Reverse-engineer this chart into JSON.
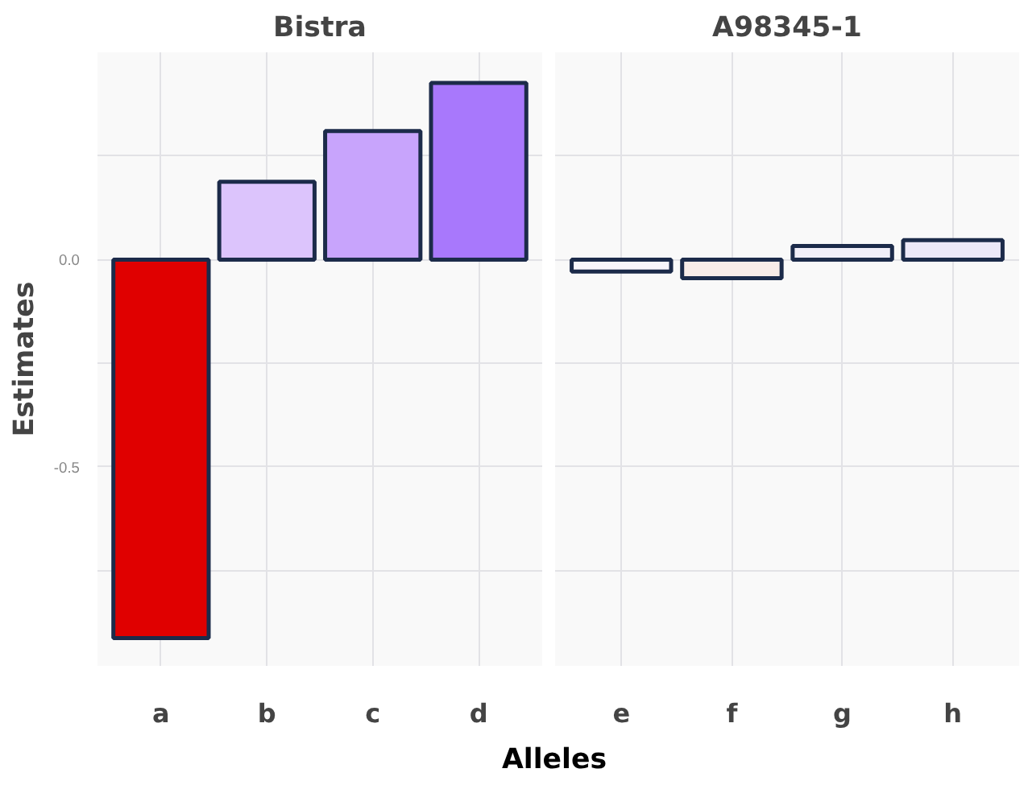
{
  "chart_data": [
    {
      "type": "bar",
      "title": "Bistra",
      "ylabel": "Estimates",
      "xlabel": "Alleles",
      "categories": [
        "a",
        "b",
        "c",
        "d"
      ],
      "values": [
        -0.913,
        0.188,
        0.31,
        0.426
      ],
      "colors": [
        "#e00000",
        "#dcc4fc",
        "#c8a4fc",
        "#a878fc"
      ],
      "ylim": [
        -0.98,
        0.5
      ],
      "yticks": [
        {
          "value": -0.75,
          "label": null
        },
        {
          "value": -0.5,
          "label": "-0.5"
        },
        {
          "value": -0.25,
          "label": null
        },
        {
          "value": 0.0,
          "label": "0.0"
        },
        {
          "value": 0.25,
          "label": null
        }
      ],
      "grid": true
    },
    {
      "type": "bar",
      "title": "A98345-1",
      "categories": [
        "e",
        "f",
        "g",
        "h"
      ],
      "values": [
        -0.029,
        -0.045,
        0.033,
        0.047
      ],
      "colors": [
        "#f8f6fb",
        "#f8ece8",
        "#f0eef8",
        "#ece8f8"
      ],
      "ylim": [
        -0.98,
        0.5
      ],
      "yticks": [
        {
          "value": -0.75,
          "label": null
        },
        {
          "value": -0.5,
          "label": null
        },
        {
          "value": -0.25,
          "label": null
        },
        {
          "value": 0.0,
          "label": null
        },
        {
          "value": 0.25,
          "label": null
        }
      ],
      "grid": true,
      "tick_labels": "x"
    }
  ]
}
